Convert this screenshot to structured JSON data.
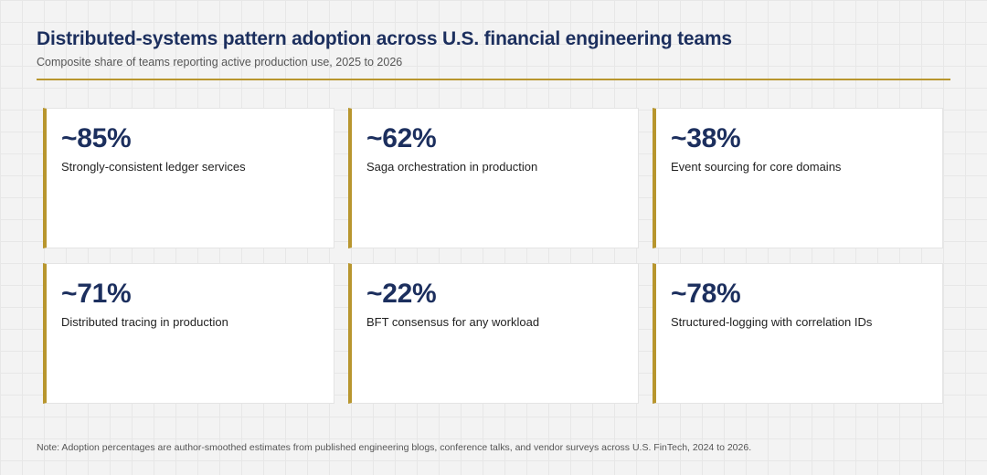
{
  "chart_data": {
    "type": "table",
    "title": "Distributed-systems pattern adoption across U.S. financial engineering teams",
    "subtitle": "Composite share of teams reporting active production use, 2025 to 2026",
    "cards": [
      {
        "value_text": "~85%",
        "value": 85,
        "label": "Strongly-consistent ledger services"
      },
      {
        "value_text": "~62%",
        "value": 62,
        "label": "Saga orchestration in production"
      },
      {
        "value_text": "~38%",
        "value": 38,
        "label": "Event sourcing for core domains"
      },
      {
        "value_text": "~71%",
        "value": 71,
        "label": "Distributed tracing in production"
      },
      {
        "value_text": "~22%",
        "value": 22,
        "label": "BFT consensus for any workload"
      },
      {
        "value_text": "~78%",
        "value": 78,
        "label": "Structured-logging with correlation IDs"
      }
    ],
    "note": "Note: Adoption percentages are author-smoothed estimates from published engineering blogs, conference talks, and vendor surveys across U.S. FinTech, 2024 to 2026."
  },
  "colors": {
    "accent": "#b8962e",
    "title": "#1c2f5e",
    "card_background": "#ffffff",
    "page_background": "#f3f3f3"
  }
}
